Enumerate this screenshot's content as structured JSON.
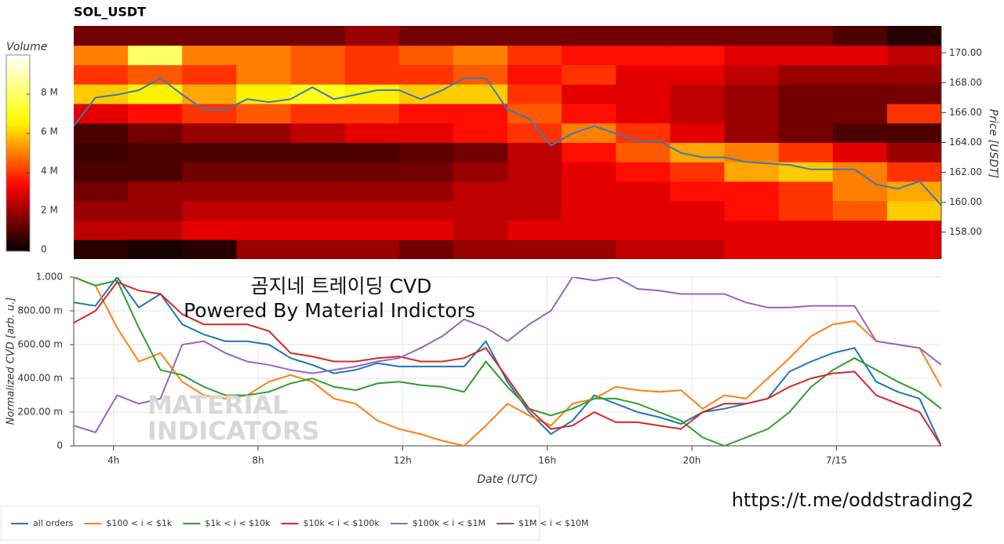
{
  "chart_data": [
    {
      "type": "heatmap",
      "title": "SOL_USDT",
      "x_bins": [
        2.9,
        4.4,
        5.9,
        7.4,
        8.9,
        10.4,
        11.9,
        13.4,
        14.9,
        16.4,
        17.9,
        19.4,
        20.9,
        22.4,
        23.9,
        25.4,
        26.9
      ],
      "y_bins": [
        156.2,
        157.5,
        158.8,
        160.1,
        161.4,
        162.7,
        164.0,
        165.3,
        166.6,
        167.9,
        169.2,
        170.5,
        171.8
      ],
      "values": [
        [
          0.5,
          0.3,
          0.5,
          2,
          2,
          2,
          1.5,
          2,
          2,
          2,
          2.5,
          2.5,
          3,
          3,
          3,
          3
        ],
        [
          2.5,
          2.5,
          3,
          3,
          3,
          3,
          3,
          2.5,
          3,
          3,
          3,
          3,
          3,
          3,
          3,
          3
        ],
        [
          2,
          2,
          2.5,
          2.5,
          2.5,
          2.5,
          2.5,
          2.5,
          2.5,
          3,
          3,
          3,
          3.5,
          4,
          4.5,
          6
        ],
        [
          1.5,
          2,
          2,
          2,
          2,
          2,
          2,
          2.5,
          2.5,
          3,
          3,
          3.5,
          3.5,
          4,
          5,
          5.5
        ],
        [
          1,
          1,
          1.5,
          1.5,
          1.5,
          1.5,
          1.5,
          2,
          2.5,
          3,
          3.5,
          4,
          5.5,
          6,
          5,
          4
        ],
        [
          0.8,
          1,
          1,
          1,
          1,
          1,
          1.2,
          1.5,
          2.5,
          3.5,
          4.5,
          5.5,
          5,
          4,
          3,
          2
        ],
        [
          1,
          1.5,
          2,
          2,
          2.5,
          3,
          3,
          3.5,
          4,
          5,
          4,
          3,
          2,
          1.5,
          1,
          1
        ],
        [
          3,
          3.5,
          4,
          4.5,
          4,
          4,
          3.5,
          3.5,
          4.5,
          3.5,
          3,
          2.5,
          2,
          1.5,
          1.5,
          4
        ],
        [
          6,
          6.5,
          5.5,
          6.5,
          7,
          6.5,
          6,
          6,
          4,
          3,
          3,
          2.5,
          2,
          1.5,
          1.5,
          1.5
        ],
        [
          4,
          4.5,
          4,
          5,
          4.5,
          4,
          4,
          4.5,
          3.5,
          4,
          3,
          3,
          2.5,
          2,
          2,
          2
        ],
        [
          5,
          8,
          5,
          5,
          4.5,
          4,
          4.5,
          5,
          4,
          3.5,
          3.5,
          3.5,
          3,
          3,
          3,
          2.5
        ],
        [
          1.5,
          1.5,
          1.5,
          1.5,
          1.5,
          2,
          1.5,
          1.5,
          1.5,
          1.5,
          1.5,
          1.5,
          1.5,
          1.5,
          1,
          0.5
        ]
      ],
      "colormap": "hot",
      "colorbar_label": "Volume",
      "zlim": [
        0,
        10
      ],
      "zticks": [
        0,
        {
          "value": 2,
          "label": "2 M"
        },
        {
          "value": 4,
          "label": "4 M"
        },
        {
          "value": 6,
          "label": "6 M"
        },
        {
          "value": 8,
          "label": "8 M"
        }
      ],
      "xlim": [
        2.9,
        26.9
      ],
      "ylim": [
        156.2,
        171.8
      ],
      "ylabel": "Price [USDT]",
      "yticks": [
        {
          "value": 158,
          "label": "158.00"
        },
        {
          "value": 160,
          "label": "160.00"
        },
        {
          "value": 162,
          "label": "162.00"
        },
        {
          "value": 164,
          "label": "164.00"
        },
        {
          "value": 166,
          "label": "166.00"
        },
        {
          "value": 168,
          "label": "168.00"
        },
        {
          "value": 170,
          "label": "170.00"
        }
      ],
      "line": {
        "color": "#3a7ab8",
        "x": [
          2.9,
          3.5,
          4.1,
          4.7,
          5.3,
          5.9,
          6.5,
          7.1,
          7.7,
          8.3,
          8.9,
          9.5,
          10.1,
          10.7,
          11.3,
          11.9,
          12.5,
          13.1,
          13.7,
          14.3,
          14.9,
          15.5,
          16.1,
          16.7,
          17.3,
          17.9,
          18.5,
          19.1,
          19.7,
          20.3,
          20.9,
          21.5,
          22.1,
          22.7,
          23.3,
          23.9,
          24.5,
          25.1,
          25.7,
          26.3,
          26.9
        ],
        "values": [
          165.1,
          167.0,
          167.2,
          167.5,
          168.3,
          167.2,
          166.2,
          166.2,
          166.9,
          166.7,
          166.9,
          167.7,
          166.9,
          167.2,
          167.5,
          167.5,
          166.9,
          167.5,
          168.3,
          168.3,
          166.2,
          165.6,
          163.8,
          164.6,
          165.1,
          164.6,
          164.1,
          164.1,
          163.3,
          163.0,
          163.0,
          162.7,
          162.6,
          162.5,
          162.2,
          162.2,
          162.2,
          161.2,
          160.9,
          161.4,
          159.8
        ]
      }
    },
    {
      "type": "line",
      "x": [
        2.9,
        3.5,
        4.1,
        4.7,
        5.3,
        5.9,
        6.5,
        7.1,
        7.7,
        8.3,
        8.9,
        9.5,
        10.1,
        10.7,
        11.3,
        11.9,
        12.5,
        13.1,
        13.7,
        14.3,
        14.9,
        15.5,
        16.1,
        16.7,
        17.3,
        17.9,
        18.5,
        19.1,
        19.7,
        20.3,
        20.9,
        21.5,
        22.1,
        22.7,
        23.3,
        23.9,
        24.5,
        25.1,
        25.7,
        26.3,
        26.9
      ],
      "series": [
        {
          "name": "all orders",
          "color": "#1f77b4",
          "values": [
            0.85,
            0.83,
            1.0,
            0.82,
            0.9,
            0.72,
            0.66,
            0.62,
            0.62,
            0.6,
            0.52,
            0.48,
            0.43,
            0.45,
            0.49,
            0.47,
            0.47,
            0.47,
            0.47,
            0.62,
            0.38,
            0.2,
            0.07,
            0.15,
            0.3,
            0.25,
            0.2,
            0.17,
            0.13,
            0.2,
            0.22,
            0.25,
            0.28,
            0.44,
            0.5,
            0.55,
            0.58,
            0.38,
            0.32,
            0.28,
            0.0
          ]
        },
        {
          "name": "$100 < i < $1k",
          "color": "#ff7f0e",
          "values": [
            1.0,
            0.95,
            0.7,
            0.5,
            0.55,
            0.38,
            0.3,
            0.28,
            0.3,
            0.38,
            0.42,
            0.38,
            0.28,
            0.25,
            0.15,
            0.1,
            0.07,
            0.03,
            0.0,
            0.12,
            0.25,
            0.18,
            0.12,
            0.25,
            0.28,
            0.35,
            0.33,
            0.32,
            0.33,
            0.22,
            0.3,
            0.28,
            0.4,
            0.52,
            0.65,
            0.72,
            0.74,
            0.62,
            0.6,
            0.58,
            0.35
          ]
        },
        {
          "name": "$1k < i < $10k",
          "color": "#2ca02c",
          "values": [
            1.0,
            0.95,
            0.98,
            0.7,
            0.45,
            0.42,
            0.35,
            0.3,
            0.3,
            0.32,
            0.37,
            0.4,
            0.35,
            0.33,
            0.37,
            0.38,
            0.36,
            0.35,
            0.32,
            0.5,
            0.35,
            0.22,
            0.18,
            0.22,
            0.28,
            0.28,
            0.25,
            0.2,
            0.15,
            0.05,
            0.0,
            0.05,
            0.1,
            0.2,
            0.35,
            0.45,
            0.52,
            0.45,
            0.38,
            0.32,
            0.22
          ]
        },
        {
          "name": "$10k < i < $100k",
          "color": "#d62728",
          "values": [
            0.73,
            0.8,
            0.97,
            0.92,
            0.9,
            0.78,
            0.72,
            0.72,
            0.72,
            0.68,
            0.55,
            0.53,
            0.5,
            0.5,
            0.52,
            0.53,
            0.5,
            0.5,
            0.52,
            0.58,
            0.4,
            0.22,
            0.1,
            0.12,
            0.2,
            0.14,
            0.14,
            0.12,
            0.1,
            0.2,
            0.25,
            0.25,
            0.28,
            0.35,
            0.4,
            0.43,
            0.44,
            0.3,
            0.25,
            0.2,
            0.0
          ]
        },
        {
          "name": "$100k < i < $1M",
          "color": "#9467bd",
          "values": [
            0.12,
            0.08,
            0.3,
            0.25,
            0.28,
            0.6,
            0.62,
            0.55,
            0.5,
            0.48,
            0.45,
            0.43,
            0.45,
            0.47,
            0.5,
            0.52,
            0.58,
            0.65,
            0.75,
            0.7,
            0.62,
            0.72,
            0.8,
            1.0,
            0.98,
            1.0,
            0.93,
            0.92,
            0.9,
            0.9,
            0.9,
            0.85,
            0.82,
            0.82,
            0.83,
            0.83,
            0.83,
            0.62,
            0.6,
            0.58,
            0.48
          ]
        },
        {
          "name": "$1M < i < $10M",
          "color": "#8c564b",
          "values": [
            null,
            null,
            null,
            null,
            null,
            null,
            null,
            null,
            null,
            null,
            null,
            null,
            null,
            null,
            null,
            null,
            null,
            null,
            null,
            null,
            null,
            null,
            null,
            null,
            null,
            null,
            null,
            null,
            null,
            null,
            null,
            null,
            null,
            null,
            null,
            null,
            null,
            null,
            null,
            null,
            null
          ]
        }
      ],
      "xlim": [
        2.9,
        26.9
      ],
      "xticks": [
        {
          "value": 4,
          "label": "4h"
        },
        {
          "value": 8,
          "label": "8h"
        },
        {
          "value": 12,
          "label": "12h"
        },
        {
          "value": 16,
          "label": "16h"
        },
        {
          "value": 20,
          "label": "20h"
        },
        {
          "value": 24,
          "label": "7/15"
        }
      ],
      "xlabel": "Date (UTC)",
      "ylabel": "Normalized CVD [arb. u.]",
      "ylim": [
        0,
        1
      ],
      "yticks": [
        0,
        {
          "value": 0.2,
          "label": "200.00 m"
        },
        {
          "value": 0.4,
          "label": "400.00 m"
        },
        {
          "value": 0.6,
          "label": "600.00 m"
        },
        {
          "value": 0.8,
          "label": "800.00 m"
        },
        {
          "value": 1,
          "label": "1.000"
        }
      ],
      "grid": true,
      "legend": "bottom-left"
    }
  ],
  "watermark": {
    "title": "곰지네 트레이딩 CVD",
    "subtitle": "Powered By Material Indictors",
    "logo_line1": "MATERIAL",
    "logo_line2": "INDICATORS"
  },
  "footer": "https://t.me/oddstrading2"
}
